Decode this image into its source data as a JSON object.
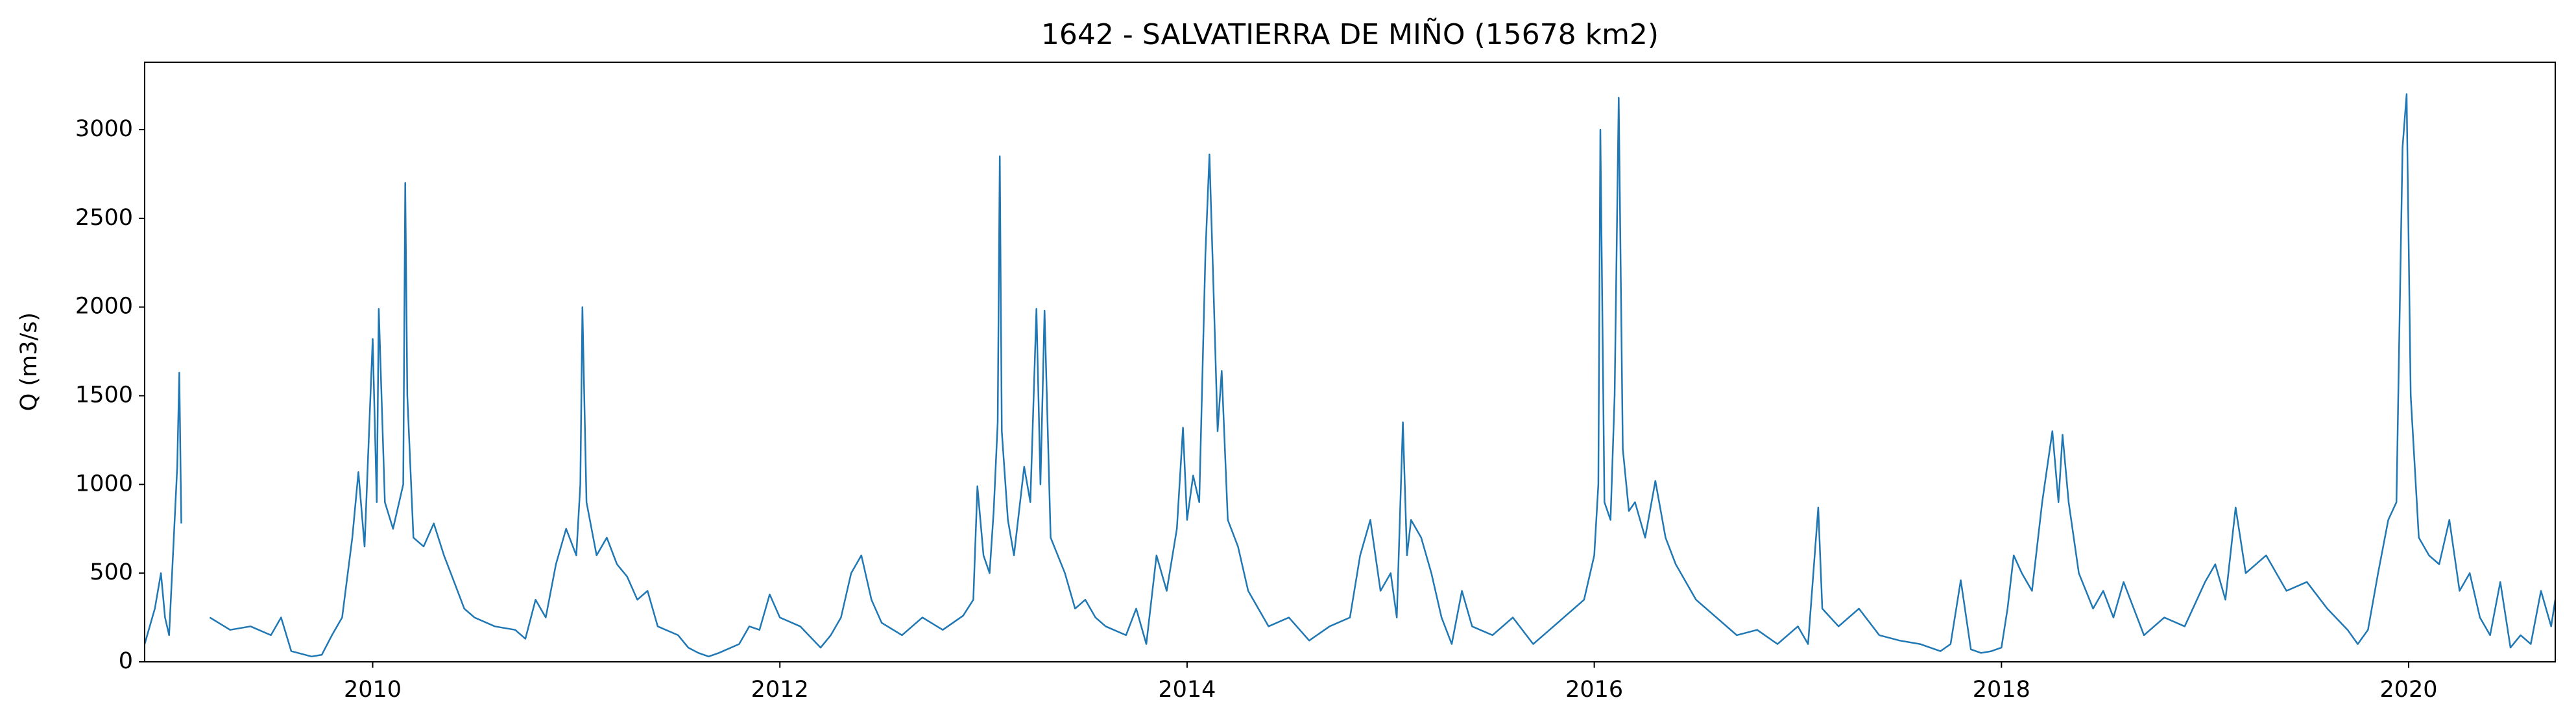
{
  "chart_data": {
    "type": "line",
    "title": "1642 - SALVATIERRA DE MIÑO (15678 km2)",
    "y_label": "Q (m3/s)",
    "color": "#1f77b4",
    "xlim": [
      2008.88,
      2020.72
    ],
    "xticks": [
      2010,
      2012,
      2014,
      2016,
      2018,
      2020
    ],
    "ylim": [
      0,
      3380
    ],
    "yticks": [
      0,
      500,
      1000,
      1500,
      2000,
      2500,
      3000
    ],
    "grid": false,
    "x": [
      2008.88,
      2008.93,
      2008.96,
      2008.98,
      2009.0,
      2009.04,
      2009.05,
      2009.06,
      2009.13,
      2009.2,
      2009.3,
      2009.4,
      2009.5,
      2009.55,
      2009.6,
      2009.7,
      2009.75,
      2009.8,
      2009.85,
      2009.9,
      2009.93,
      2009.96,
      2010.0,
      2010.02,
      2010.03,
      2010.06,
      2010.1,
      2010.15,
      2010.16,
      2010.17,
      2010.2,
      2010.25,
      2010.3,
      2010.35,
      2010.4,
      2010.45,
      2010.5,
      2010.6,
      2010.7,
      2010.75,
      2010.8,
      2010.85,
      2010.9,
      2010.95,
      2011.0,
      2011.02,
      2011.03,
      2011.05,
      2011.1,
      2011.15,
      2011.2,
      2011.25,
      2011.3,
      2011.35,
      2011.4,
      2011.5,
      2011.55,
      2011.6,
      2011.65,
      2011.7,
      2011.8,
      2011.85,
      2011.9,
      2011.95,
      2012.0,
      2012.1,
      2012.2,
      2012.25,
      2012.3,
      2012.35,
      2012.4,
      2012.45,
      2012.5,
      2012.6,
      2012.7,
      2012.8,
      2012.9,
      2012.95,
      2012.97,
      2013.0,
      2013.03,
      2013.05,
      2013.07,
      2013.08,
      2013.09,
      2013.12,
      2013.15,
      2013.2,
      2013.23,
      2013.26,
      2013.28,
      2013.3,
      2013.33,
      2013.4,
      2013.45,
      2013.5,
      2013.55,
      2013.6,
      2013.7,
      2013.75,
      2013.8,
      2013.85,
      2013.9,
      2013.95,
      2013.98,
      2014.0,
      2014.03,
      2014.06,
      2014.09,
      2014.11,
      2014.13,
      2014.15,
      2014.17,
      2014.2,
      2014.25,
      2014.3,
      2014.35,
      2014.4,
      2014.5,
      2014.6,
      2014.7,
      2014.8,
      2014.85,
      2014.9,
      2014.95,
      2015.0,
      2015.03,
      2015.06,
      2015.08,
      2015.1,
      2015.15,
      2015.2,
      2015.25,
      2015.3,
      2015.35,
      2015.4,
      2015.5,
      2015.6,
      2015.7,
      2015.8,
      2015.9,
      2015.95,
      2016.0,
      2016.02,
      2016.03,
      2016.05,
      2016.08,
      2016.1,
      2016.12,
      2016.14,
      2016.17,
      2016.2,
      2016.25,
      2016.3,
      2016.35,
      2016.4,
      2016.5,
      2016.6,
      2016.7,
      2016.8,
      2016.9,
      2017.0,
      2017.05,
      2017.1,
      2017.12,
      2017.2,
      2017.3,
      2017.4,
      2017.5,
      2017.6,
      2017.7,
      2017.75,
      2017.8,
      2017.85,
      2017.9,
      2017.95,
      2018.0,
      2018.03,
      2018.06,
      2018.1,
      2018.15,
      2018.2,
      2018.25,
      2018.28,
      2018.3,
      2018.33,
      2018.38,
      2018.45,
      2018.5,
      2018.55,
      2018.6,
      2018.7,
      2018.8,
      2018.9,
      2019.0,
      2019.05,
      2019.1,
      2019.15,
      2019.2,
      2019.3,
      2019.4,
      2019.5,
      2019.6,
      2019.7,
      2019.75,
      2019.8,
      2019.85,
      2019.9,
      2019.94,
      2019.97,
      2019.99,
      2020.01,
      2020.05,
      2020.1,
      2020.15,
      2020.2,
      2020.25,
      2020.3,
      2020.35,
      2020.4,
      2020.45,
      2020.5,
      2020.55,
      2020.6,
      2020.65,
      2020.7,
      2020.72
    ],
    "values": [
      100,
      300,
      500,
      250,
      150,
      1100,
      1630,
      780,
      null,
      250,
      180,
      200,
      150,
      250,
      60,
      30,
      40,
      150,
      250,
      700,
      1070,
      650,
      1820,
      900,
      1990,
      900,
      750,
      1000,
      2700,
      1500,
      700,
      650,
      780,
      600,
      450,
      300,
      250,
      200,
      180,
      130,
      350,
      250,
      550,
      750,
      600,
      1000,
      2000,
      900,
      600,
      700,
      550,
      480,
      350,
      400,
      200,
      150,
      80,
      50,
      30,
      50,
      100,
      200,
      180,
      380,
      250,
      200,
      80,
      150,
      250,
      500,
      600,
      350,
      220,
      150,
      250,
      180,
      260,
      350,
      990,
      600,
      500,
      850,
      1350,
      2850,
      1300,
      800,
      600,
      1100,
      900,
      1990,
      1000,
      1980,
      700,
      500,
      300,
      350,
      250,
      200,
      150,
      300,
      100,
      600,
      400,
      750,
      1320,
      800,
      1050,
      900,
      2300,
      2860,
      2100,
      1300,
      1640,
      800,
      650,
      400,
      300,
      200,
      250,
      120,
      200,
      250,
      600,
      800,
      400,
      500,
      250,
      1350,
      600,
      800,
      700,
      500,
      250,
      100,
      400,
      200,
      150,
      250,
      100,
      200,
      300,
      350,
      600,
      1000,
      3000,
      900,
      800,
      1500,
      3180,
      1200,
      850,
      900,
      700,
      1020,
      700,
      550,
      350,
      250,
      150,
      180,
      100,
      200,
      100,
      870,
      300,
      200,
      300,
      150,
      120,
      100,
      60,
      100,
      460,
      70,
      50,
      60,
      80,
      300,
      600,
      500,
      400,
      900,
      1300,
      900,
      1280,
      900,
      500,
      300,
      400,
      250,
      450,
      150,
      250,
      200,
      450,
      550,
      350,
      870,
      500,
      600,
      400,
      450,
      300,
      180,
      100,
      180,
      500,
      800,
      900,
      2900,
      3200,
      1500,
      700,
      600,
      550,
      800,
      400,
      500,
      250,
      150,
      450,
      80,
      150,
      100,
      400,
      200,
      350
    ]
  }
}
